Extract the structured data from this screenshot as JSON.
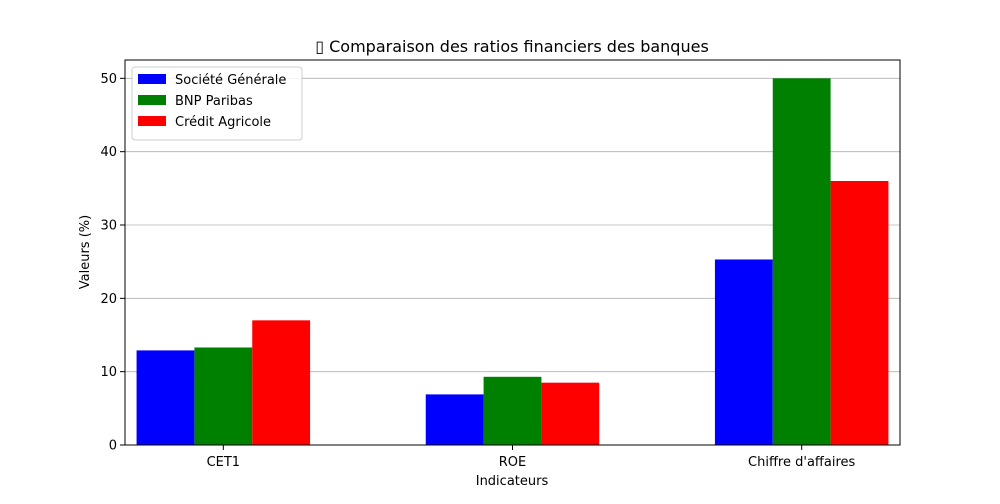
{
  "chart_data": {
    "type": "bar",
    "title": "▯ Comparaison des ratios financiers des banques",
    "xlabel": "Indicateurs",
    "ylabel": "Valeurs (%)",
    "categories": [
      "CET1",
      "ROE",
      "Chiffre d'affaires"
    ],
    "series": [
      {
        "name": "Société Générale",
        "color": "#0000ff",
        "values": [
          12.9,
          6.9,
          25.3
        ]
      },
      {
        "name": "BNP Paribas",
        "color": "#008000",
        "values": [
          13.3,
          9.3,
          50.0
        ]
      },
      {
        "name": "Crédit Agricole",
        "color": "#ff0000",
        "values": [
          17.0,
          8.5,
          36.0
        ]
      }
    ],
    "ylim": [
      0,
      52.5
    ],
    "yticks": [
      0,
      10,
      20,
      30,
      40,
      50
    ],
    "grid": "y",
    "legend": "top-left"
  }
}
